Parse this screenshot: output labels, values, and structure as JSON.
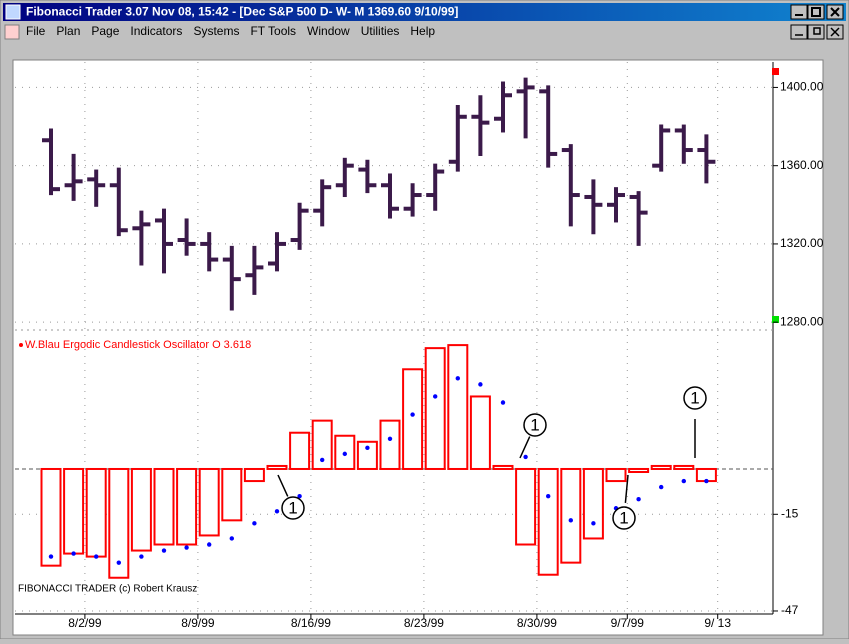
{
  "window": {
    "title": "Fibonacci Trader 3.07 Nov 08,  15:42 - [Dec S&P 500 D- W- M 1369.60 9/10/99]",
    "menu": [
      "File",
      "Plan",
      "Page",
      "Indicators",
      "Systems",
      "FT Tools",
      "Window",
      "Utilities",
      "Help"
    ]
  },
  "chart_data": [
    {
      "type": "ohlc",
      "color": "#3b1a4a",
      "ylim": [
        1276,
        1413
      ],
      "yticks": [
        {
          "value": 1400,
          "label": "1400.00"
        },
        {
          "value": 1360,
          "label": "1360.00"
        },
        {
          "value": 1320,
          "label": "1320.00"
        },
        {
          "value": 1280,
          "label": "1280.00"
        }
      ],
      "grid": true,
      "open": [
        1373,
        1350,
        1353,
        1350,
        1328,
        1332,
        1322,
        1320,
        1312,
        1304,
        1310,
        1322,
        1337,
        1350,
        1358,
        1350,
        1338,
        1345,
        1362,
        1385,
        1384,
        1398,
        1398,
        1368,
        1344,
        1340,
        1344,
        1360,
        1378,
        1368,
        null
      ],
      "high": [
        1378,
        1365,
        1357,
        1358,
        1336,
        1337,
        1332,
        1325,
        1318,
        1318,
        1325,
        1340,
        1352,
        1363,
        1362,
        1355,
        1350,
        1360,
        1390,
        1395,
        1402,
        1404,
        1400,
        1370,
        1352,
        1348,
        1346,
        1380,
        1380,
        1375,
        null
      ],
      "low": [
        1346,
        1343,
        1340,
        1325,
        1310,
        1306,
        1315,
        1307,
        1287,
        1295,
        1307,
        1318,
        1330,
        1345,
        1347,
        1334,
        1335,
        1338,
        1358,
        1366,
        1378,
        1375,
        1360,
        1330,
        1326,
        1332,
        1320,
        1358,
        1362,
        1352,
        null
      ],
      "close": [
        1348,
        1352,
        1350,
        1327,
        1330,
        1320,
        1320,
        1312,
        1302,
        1308,
        1320,
        1337,
        1349,
        1360,
        1350,
        1338,
        1345,
        1357,
        1385,
        1382,
        1396,
        1400,
        1366,
        1345,
        1340,
        1345,
        1336,
        1378,
        1368,
        1362,
        null
      ]
    },
    {
      "type": "bar",
      "categories": [
        null,
        null,
        "8/2/99",
        null,
        null,
        null,
        null,
        "8/9/99",
        null,
        null,
        null,
        null,
        "8/16/99",
        null,
        null,
        null,
        null,
        "8/23/99",
        null,
        null,
        null,
        null,
        "8/30/99",
        null,
        null,
        null,
        "9/7/99",
        null,
        null,
        null,
        "9/ 13"
      ],
      "ylim": [
        -48,
        46
      ],
      "yticks": [
        -15,
        -47
      ],
      "grid": true,
      "series": [
        {
          "name": "W.Blau Ergodic Candlestick Oscillator O 3.618",
          "color": "#ff0000",
          "values": [
            -32,
            -28,
            -29,
            -36,
            -27,
            -25,
            -25,
            -22,
            -17,
            -4,
            1,
            12,
            16,
            11,
            9,
            16,
            33,
            40,
            41,
            24,
            1,
            -25,
            -35,
            -31,
            -23,
            -4,
            -1,
            1,
            1,
            -4,
            null
          ]
        },
        {
          "color": "#0000ff",
          "values": [
            -29,
            -28,
            -29,
            -31,
            -29,
            -27,
            -26,
            -25,
            -23,
            -18,
            -14,
            -9,
            3,
            5,
            7,
            10,
            18,
            24,
            30,
            28,
            22,
            4,
            -9,
            -17,
            -18,
            -13,
            -10,
            -6,
            -4,
            -4,
            null
          ]
        }
      ],
      "annotations": [
        "1",
        "1",
        "1",
        "1"
      ],
      "footer": "FIBONACCI TRADER (c) Robert Krausz"
    }
  ]
}
